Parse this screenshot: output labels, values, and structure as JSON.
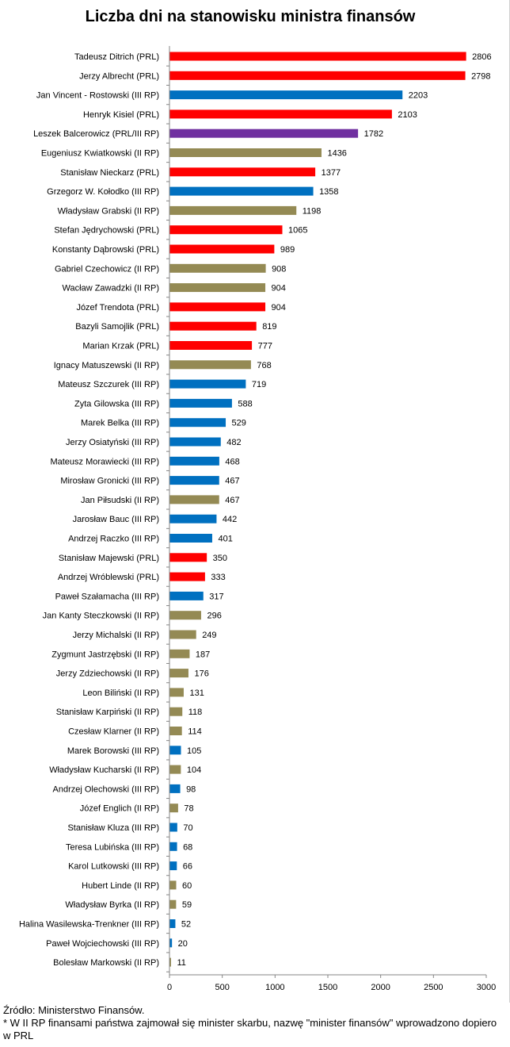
{
  "chart_data": {
    "type": "bar",
    "orientation": "horizontal",
    "title": "Liczba dni na stanowisku ministra finansów",
    "xlim": [
      0,
      3000
    ],
    "xticks": [
      "0",
      "500",
      "1000",
      "1500",
      "2000",
      "2500",
      "3000"
    ],
    "grid": false,
    "legend": "none",
    "colors": {
      "PRL": "#ff0000",
      "III RP": "#0070c0",
      "II RP": "#948a54",
      "PRL/III RP": "#7030a0"
    },
    "categories": [
      "Tadeusz Ditrich (PRL)",
      "Jerzy Albrecht (PRL)",
      "Jan Vincent - Rostowski (III RP)",
      "Henryk Kisiel (PRL)",
      "Leszek Balcerowicz (PRL/III RP)",
      "Eugeniusz Kwiatkowski (II RP)",
      "Stanisław Nieckarz (PRL)",
      "Grzegorz W. Kołodko (III RP)",
      "Władysław Grabski (II RP)",
      "Stefan Jędrychowski (PRL)",
      "Konstanty Dąbrowski (PRL)",
      "Gabriel Czechowicz (II RP)",
      "Wacław Zawadzki (II RP)",
      "Józef Trendota (PRL)",
      "Bazyli Samojlik (PRL)",
      "Marian Krzak (PRL)",
      "Ignacy Matuszewski (II RP)",
      "Mateusz Szczurek (III RP)",
      "Zyta Gilowska (III RP)",
      "Marek Belka (III RP)",
      "Jerzy Osiatyński (III RP)",
      "Mateusz Morawiecki (III RP)",
      "Mirosław Gronicki (III RP)",
      "Jan Piłsudski (II RP)",
      "Jarosław Bauc (III RP)",
      "Andrzej Raczko (III RP)",
      "Stanisław Majewski (PRL)",
      "Andrzej Wróblewski (PRL)",
      "Paweł Szałamacha (III RP)",
      "Jan Kanty Steczkowski (II RP)",
      "Jerzy Michalski (II RP)",
      "Zygmunt Jastrzębski (II RP)",
      "Jerzy Zdziechowski (II RP)",
      "Leon Biliński (II RP)",
      "Stanisław Karpiński (II RP)",
      "Czesław Klarner (II RP)",
      "Marek Borowski (III RP)",
      "Władysław Kucharski (II RP)",
      "Andrzej Olechowski (III RP)",
      "Józef Englich (II RP)",
      "Stanisław Kluza (III RP)",
      "Teresa Lubińska (III RP)",
      "Karol Lutkowski (III RP)",
      "Hubert Linde (II RP)",
      "Władysław Byrka (II RP)",
      "Halina Wasilewska-Trenkner (III RP)",
      "Paweł Wojciechowski (III RP)",
      "Bolesław Markowski (II RP)"
    ],
    "values": [
      2806,
      2798,
      2203,
      2103,
      1782,
      1436,
      1377,
      1358,
      1198,
      1065,
      989,
      908,
      904,
      904,
      819,
      777,
      768,
      719,
      588,
      529,
      482,
      468,
      467,
      467,
      442,
      401,
      350,
      333,
      317,
      296,
      249,
      187,
      176,
      131,
      118,
      114,
      105,
      104,
      98,
      78,
      70,
      68,
      66,
      60,
      59,
      52,
      20,
      11
    ],
    "groups": [
      "PRL",
      "PRL",
      "III RP",
      "PRL",
      "PRL/III RP",
      "II RP",
      "PRL",
      "III RP",
      "II RP",
      "PRL",
      "PRL",
      "II RP",
      "II RP",
      "PRL",
      "PRL",
      "PRL",
      "II RP",
      "III RP",
      "III RP",
      "III RP",
      "III RP",
      "III RP",
      "III RP",
      "II RP",
      "III RP",
      "III RP",
      "PRL",
      "PRL",
      "III RP",
      "II RP",
      "II RP",
      "II RP",
      "II RP",
      "II RP",
      "II RP",
      "II RP",
      "III RP",
      "II RP",
      "III RP",
      "II RP",
      "III RP",
      "III RP",
      "III RP",
      "II RP",
      "II RP",
      "III RP",
      "III RP",
      "II RP"
    ]
  },
  "footer": {
    "source": "Źródło: Ministerstwo Finansów.",
    "note": "* W II RP finansami państwa zajmował się minister skarbu, nazwę \"minister finansów\" wprowadzono dopiero w PRL"
  }
}
